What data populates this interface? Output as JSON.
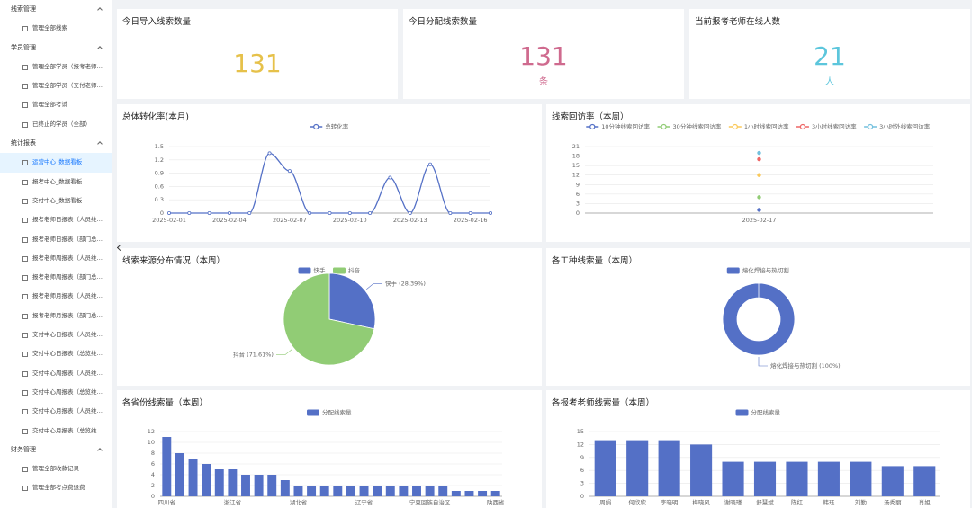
{
  "sidebar": [
    {
      "title": "线索管理",
      "items": [
        "管理全部线索"
      ]
    },
    {
      "title": "学员管理",
      "items": [
        "管理全部学员（报考老师…",
        "管理全部学员（交付老师…",
        "管理全部考试",
        "已终止的学员（全部）"
      ]
    },
    {
      "title": "统计报表",
      "items": [
        "运营中心_数据看板",
        "报考中心_数据看板",
        "交付中心_数据看板",
        "报考老师日报表（人员维…",
        "报考老师日报表（部门总…",
        "报考老师周报表（人员维…",
        "报考老师周报表（部门总…",
        "报考老师月报表（人员维…",
        "报考老师月报表（部门总…",
        "交付中心日报表（人员维…",
        "交付中心日报表（总览维…",
        "交付中心周报表（人员维…",
        "交付中心周报表（总览维…",
        "交付中心月报表（人员维…",
        "交付中心月报表（总览维…"
      ]
    },
    {
      "title": "财务管理",
      "items": [
        "管理全部收款记录",
        "管理全部考点费退费"
      ]
    }
  ],
  "cards": [
    {
      "title": "今日导入线索数量",
      "value": 131,
      "color": "#e6c14a"
    },
    {
      "title": "今日分配线索数量",
      "value": 131,
      "unit": "条",
      "color": "#cf6a8e"
    },
    {
      "title": "当前报考老师在线人数",
      "value": 21,
      "unit": "人",
      "color": "#5cc6dc"
    }
  ],
  "chart_data": [
    {
      "type": "line",
      "title": "总体转化率(本月)",
      "categories": [
        "2025-02-01",
        null,
        null,
        "2025-02-04",
        null,
        null,
        "2025-02-07",
        null,
        null,
        "2025-02-10",
        null,
        null,
        "2025-02-13",
        null,
        null,
        "2025-02-16",
        null
      ],
      "series": [
        {
          "name": "总转化率",
          "color": "#5470c6",
          "values": [
            0,
            0,
            0,
            0,
            0,
            1.35,
            0.95,
            0,
            0,
            0,
            0,
            0.8,
            0,
            1.1,
            0,
            0,
            0
          ]
        }
      ],
      "ylim": [
        0,
        1.5
      ],
      "yticks": [
        0,
        0.3,
        0.6,
        0.9,
        1.2,
        1.5
      ],
      "grid": true,
      "smooth": true
    },
    {
      "type": "line",
      "title": "线索回访率（本周）",
      "categories": [
        "2025-02-17"
      ],
      "series": [
        {
          "name": "10分钟线索回访率",
          "color": "#5470c6",
          "values": [
            1
          ]
        },
        {
          "name": "30分钟线索回访率",
          "color": "#91cc75",
          "values": [
            5
          ]
        },
        {
          "name": "1小时线索回访率",
          "color": "#fac858",
          "values": [
            12
          ]
        },
        {
          "name": "3小时线索回访率",
          "color": "#ee6666",
          "values": [
            17
          ]
        },
        {
          "name": "3小时外线索回访率",
          "color": "#73c0de",
          "values": [
            19
          ]
        }
      ],
      "ylim": [
        0,
        21
      ],
      "yticks": [
        0,
        3,
        6,
        9,
        12,
        15,
        18,
        21
      ],
      "grid": true
    },
    {
      "type": "pie",
      "title": "线索来源分布情况（本周）",
      "categories": [
        "快手",
        "抖音"
      ],
      "values": [
        28.39,
        71.61
      ],
      "value_labels": [
        "快手 (28.39%)",
        "抖音 (71.61%)"
      ],
      "colors": [
        "#5470c6",
        "#91cc75"
      ]
    },
    {
      "type": "donut",
      "title": "各工种线索量（本周）",
      "categories": [
        "熔化焊接与热切割"
      ],
      "values": [
        100
      ],
      "value_labels": [
        "熔化焊接与热切割 (100%)"
      ],
      "colors": [
        "#5470c6"
      ]
    },
    {
      "type": "bar",
      "title": "各省份线索量（本周）",
      "categories": [
        "四川省",
        null,
        null,
        null,
        null,
        "浙江省",
        null,
        null,
        null,
        null,
        "湖北省",
        null,
        null,
        null,
        null,
        "辽宁省",
        null,
        null,
        null,
        null,
        "宁夏回族自治区",
        null,
        null,
        null,
        null,
        "陕西省"
      ],
      "series": [
        {
          "name": "分配线索量",
          "color": "#5470c6",
          "values": [
            11,
            8,
            7,
            6,
            5,
            5,
            4,
            4,
            4,
            3,
            2,
            2,
            2,
            2,
            2,
            2,
            2,
            2,
            2,
            2,
            2,
            2,
            1,
            1,
            1,
            1
          ]
        }
      ],
      "ylim": [
        0,
        12
      ],
      "yticks": [
        0,
        2,
        4,
        6,
        8,
        10,
        12
      ],
      "grid": true
    },
    {
      "type": "bar",
      "title": "各报考老师线索量（本周）",
      "categories": [
        "周娟",
        "何欣欣",
        "李晓明",
        "梅晓风",
        "谢晓瑾",
        "舒慧斌",
        "陈红",
        "韩珏",
        "刘勤",
        "汤秀丽",
        "肖姐"
      ],
      "series": [
        {
          "name": "分配线索量",
          "color": "#5470c6",
          "values": [
            13,
            13,
            13,
            12,
            8,
            8,
            8,
            8,
            8,
            7,
            7
          ]
        }
      ],
      "ylim": [
        0,
        15
      ],
      "yticks": [
        0,
        3,
        6,
        9,
        12,
        15
      ],
      "grid": true
    }
  ]
}
